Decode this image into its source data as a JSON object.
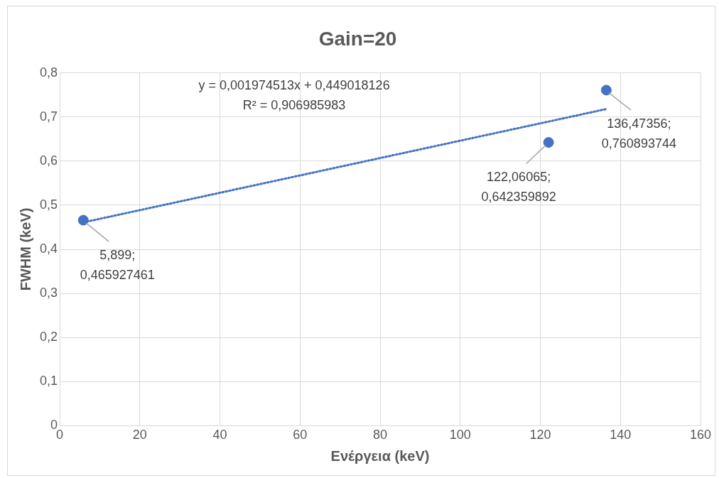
{
  "chart_data": {
    "type": "scatter",
    "title": "Gain=20",
    "xlabel": "Ενέργεια (keV)",
    "ylabel": "FWHM (keV)",
    "series": [
      {
        "type": "scatter",
        "color": "#4472c4",
        "x": [
          5.899,
          122.06065,
          136.47356
        ],
        "values": [
          0.465927461,
          0.642359892,
          0.760893744
        ],
        "value_labels": [
          "5,899;\n0,465927461",
          "122,06065;\n0,642359892",
          "136,47356;\n0,760893744"
        ]
      },
      {
        "type": "line",
        "color": "#4472c4",
        "line_style": "dotted",
        "marker": "none",
        "x": [
          5.899,
          136.47356
        ],
        "values": [
          0.461,
          0.718
        ]
      }
    ],
    "annotations": [
      "y = 0,001974513x + 0,449018126",
      "R² = 0,906985983"
    ],
    "xlim": [
      0,
      160
    ],
    "xticks": [
      0,
      20,
      40,
      60,
      80,
      100,
      120,
      140,
      160
    ],
    "ylim": [
      0,
      0.8
    ],
    "yticks": [
      0,
      {
        "value": 0.1,
        "label": "0,1"
      },
      {
        "value": 0.2,
        "label": "0,2"
      },
      {
        "value": 0.3,
        "label": "0,3"
      },
      {
        "value": 0.4,
        "label": "0,4"
      },
      {
        "value": 0.5,
        "label": "0,5"
      },
      {
        "value": 0.6,
        "label": "0,6"
      },
      {
        "value": 0.7,
        "label": "0,7"
      },
      {
        "value": 0.8,
        "label": "0,8"
      }
    ],
    "grid": true,
    "legend": false,
    "marker": "circle"
  }
}
